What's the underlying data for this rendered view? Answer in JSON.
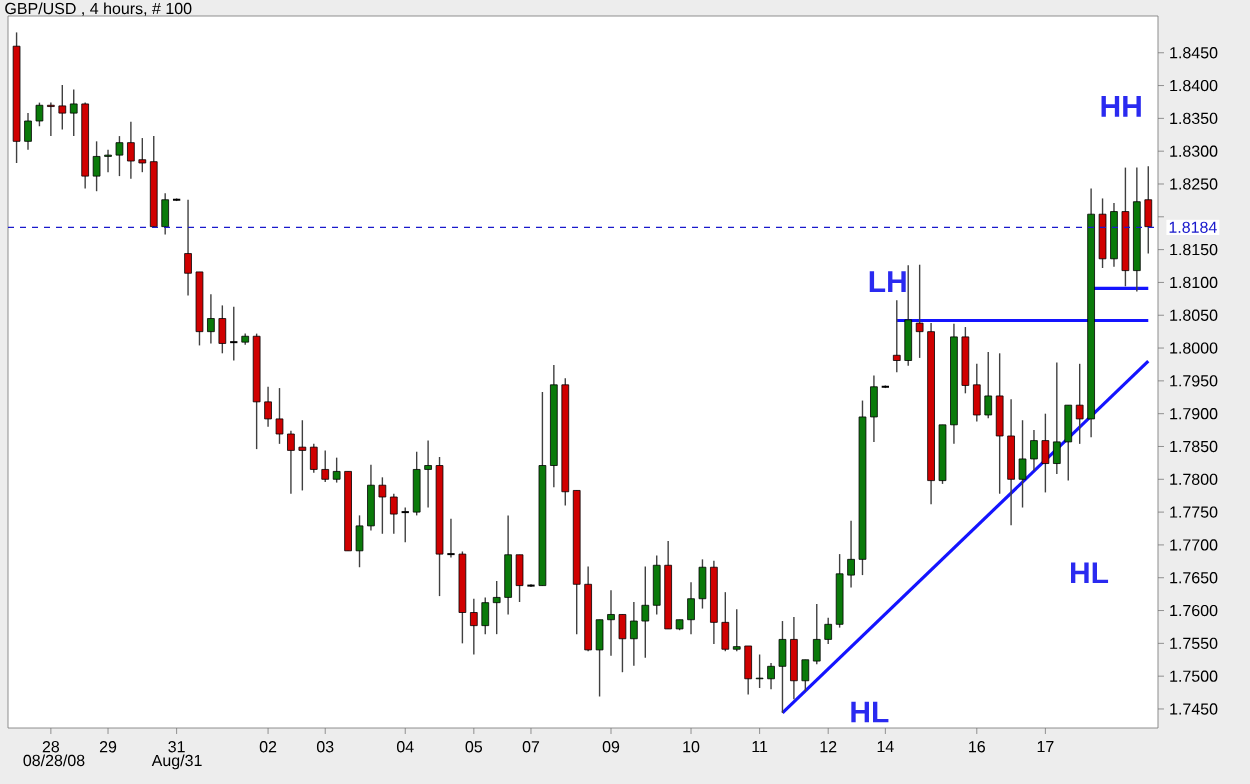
{
  "chart_data": {
    "type": "candlestick",
    "title": "GBP/USD , 4 hours, # 100",
    "categories": [
      null,
      null,
      null,
      "28",
      null,
      null,
      null,
      null,
      "29",
      null,
      null,
      null,
      null,
      null,
      "31",
      null,
      null,
      null,
      null,
      null,
      null,
      null,
      "02",
      null,
      null,
      null,
      null,
      "03",
      null,
      null,
      null,
      null,
      null,
      null,
      "04",
      null,
      null,
      null,
      null,
      null,
      "05",
      null,
      null,
      null,
      null,
      "07",
      null,
      null,
      null,
      null,
      null,
      null,
      "09",
      null,
      null,
      null,
      null,
      null,
      null,
      "10",
      null,
      null,
      null,
      null,
      null,
      "11",
      null,
      null,
      null,
      null,
      null,
      "12",
      null,
      null,
      null,
      null,
      "14",
      null,
      null,
      null,
      null,
      null,
      null,
      null,
      "16",
      null,
      null,
      null,
      null,
      null,
      "17",
      null,
      null,
      null,
      null,
      null,
      null,
      null,
      null,
      null
    ],
    "ohlc": [
      [
        1.846,
        1.8481,
        1.8282,
        1.8315
      ],
      [
        1.8315,
        1.8358,
        1.8302,
        1.8346
      ],
      [
        1.8346,
        1.8374,
        1.8338,
        1.837
      ],
      [
        1.837,
        1.8374,
        1.8323,
        1.8368
      ],
      [
        1.8369,
        1.8401,
        1.8333,
        1.8358
      ],
      [
        1.8358,
        1.8394,
        1.8323,
        1.8372
      ],
      [
        1.8372,
        1.8374,
        1.8243,
        1.8262
      ],
      [
        1.8262,
        1.8315,
        1.8239,
        1.8292
      ],
      [
        1.8292,
        1.8302,
        1.8268,
        1.8294
      ],
      [
        1.8294,
        1.8323,
        1.8262,
        1.8313
      ],
      [
        1.8313,
        1.8345,
        1.8258,
        1.8285
      ],
      [
        1.8287,
        1.832,
        1.8268,
        1.8282
      ],
      [
        1.8284,
        1.8323,
        1.8185,
        1.8185
      ],
      [
        1.8185,
        1.8236,
        1.8173,
        1.8226
      ],
      [
        1.8226,
        1.8228,
        1.8224,
        1.8226
      ],
      [
        1.8144,
        1.8226,
        1.808,
        1.8114
      ],
      [
        1.8116,
        1.8116,
        1.8004,
        1.8025
      ],
      [
        1.8025,
        1.8082,
        1.8007,
        1.8045
      ],
      [
        1.8045,
        1.8065,
        1.7992,
        1.8007
      ],
      [
        1.8009,
        1.8063,
        1.7981,
        1.8009
      ],
      [
        1.8009,
        1.8022,
        1.8005,
        1.8018
      ],
      [
        1.8018,
        1.8022,
        1.7846,
        1.7918
      ],
      [
        1.7918,
        1.7941,
        1.788,
        1.7892
      ],
      [
        1.7892,
        1.7939,
        1.7854,
        1.7869
      ],
      [
        1.7869,
        1.7874,
        1.7778,
        1.7844
      ],
      [
        1.7849,
        1.789,
        1.7783,
        1.7844
      ],
      [
        1.7849,
        1.7854,
        1.781,
        1.7815
      ],
      [
        1.7815,
        1.7844,
        1.7796,
        1.78
      ],
      [
        1.78,
        1.7833,
        1.7795,
        1.7812
      ],
      [
        1.7812,
        1.7812,
        1.7691,
        1.7691
      ],
      [
        1.7691,
        1.7745,
        1.7666,
        1.7729
      ],
      [
        1.7729,
        1.7822,
        1.7722,
        1.7791
      ],
      [
        1.7791,
        1.7803,
        1.7717,
        1.7773
      ],
      [
        1.7773,
        1.7778,
        1.7717,
        1.7747
      ],
      [
        1.775,
        1.7757,
        1.7704,
        1.775
      ],
      [
        1.775,
        1.7842,
        1.7745,
        1.7815
      ],
      [
        1.7815,
        1.7859,
        1.7757,
        1.7821
      ],
      [
        1.7821,
        1.7834,
        1.7622,
        1.7686
      ],
      [
        1.7686,
        1.774,
        1.7681,
        1.7686
      ],
      [
        1.7686,
        1.769,
        1.755,
        1.7597
      ],
      [
        1.7597,
        1.7618,
        1.7533,
        1.7577
      ],
      [
        1.7577,
        1.762,
        1.7564,
        1.7612
      ],
      [
        1.7612,
        1.7645,
        1.7564,
        1.762
      ],
      [
        1.762,
        1.7745,
        1.7594,
        1.7685
      ],
      [
        1.7685,
        1.7685,
        1.7613,
        1.7638
      ],
      [
        1.7638,
        1.764,
        1.7636,
        1.7638
      ],
      [
        1.7638,
        1.7933,
        1.7638,
        1.7821
      ],
      [
        1.7821,
        1.7974,
        1.7788,
        1.7944
      ],
      [
        1.7944,
        1.7954,
        1.776,
        1.7781
      ],
      [
        1.7783,
        1.7783,
        1.7564,
        1.764
      ],
      [
        1.764,
        1.7667,
        1.7538,
        1.754
      ],
      [
        1.754,
        1.7586,
        1.7469,
        1.7586
      ],
      [
        1.7586,
        1.7631,
        1.7531,
        1.7594
      ],
      [
        1.7594,
        1.7594,
        1.7506,
        1.7557
      ],
      [
        1.7557,
        1.7613,
        1.7516,
        1.7584
      ],
      [
        1.7584,
        1.7667,
        1.7528,
        1.7608
      ],
      [
        1.7608,
        1.7684,
        1.7594,
        1.7669
      ],
      [
        1.7669,
        1.7706,
        1.7572,
        1.7572
      ],
      [
        1.7572,
        1.7586,
        1.757,
        1.7586
      ],
      [
        1.7586,
        1.7643,
        1.7564,
        1.7618
      ],
      [
        1.7618,
        1.7678,
        1.7603,
        1.7666
      ],
      [
        1.7666,
        1.7676,
        1.7549,
        1.7582
      ],
      [
        1.7582,
        1.7628,
        1.7538,
        1.7541
      ],
      [
        1.7541,
        1.7602,
        1.7538,
        1.7545
      ],
      [
        1.7546,
        1.7546,
        1.7472,
        1.7496
      ],
      [
        1.7496,
        1.7533,
        1.7482,
        1.7497
      ],
      [
        1.7496,
        1.752,
        1.748,
        1.7515
      ],
      [
        1.7515,
        1.7584,
        1.7444,
        1.7556
      ],
      [
        1.7556,
        1.759,
        1.7465,
        1.7493
      ],
      [
        1.7493,
        1.7525,
        1.7477,
        1.7525
      ],
      [
        1.7523,
        1.761,
        1.7518,
        1.7556
      ],
      [
        1.7556,
        1.7589,
        1.7549,
        1.7579
      ],
      [
        1.7579,
        1.7686,
        1.7574,
        1.7656
      ],
      [
        1.7654,
        1.7737,
        1.7635,
        1.7678
      ],
      [
        1.7678,
        1.792,
        1.7654,
        1.7895
      ],
      [
        1.7895,
        1.7958,
        1.7857,
        1.7941
      ],
      [
        1.7941,
        1.7943,
        1.7939,
        1.7941
      ],
      [
        1.7989,
        1.8073,
        1.7963,
        1.7981
      ],
      [
        1.7981,
        1.8126,
        1.7973,
        1.8043
      ],
      [
        1.8038,
        1.8127,
        1.7985,
        1.8025
      ],
      [
        1.8025,
        1.8038,
        1.7762,
        1.7798
      ],
      [
        1.7798,
        1.7883,
        1.7793,
        1.7883
      ],
      [
        1.7883,
        1.8037,
        1.7854,
        1.8017
      ],
      [
        1.8017,
        1.8032,
        1.7931,
        1.7943
      ],
      [
        1.7944,
        1.7976,
        1.7888,
        1.7898
      ],
      [
        1.7898,
        1.7994,
        1.7893,
        1.7927
      ],
      [
        1.7927,
        1.7992,
        1.7778,
        1.7866
      ],
      [
        1.7866,
        1.7922,
        1.773,
        1.78
      ],
      [
        1.78,
        1.789,
        1.7757,
        1.7831
      ],
      [
        1.7831,
        1.7875,
        1.7813,
        1.7859
      ],
      [
        1.7859,
        1.79,
        1.778,
        1.7824
      ],
      [
        1.7824,
        1.7978,
        1.7808,
        1.7857
      ],
      [
        1.7857,
        1.7913,
        1.7798,
        1.7913
      ],
      [
        1.7913,
        1.7976,
        1.7854,
        1.7892
      ],
      [
        1.7892,
        1.8243,
        1.7864,
        1.8204
      ],
      [
        1.8204,
        1.8228,
        1.8122,
        1.8136
      ],
      [
        1.8136,
        1.8221,
        1.8124,
        1.8208
      ],
      [
        1.8208,
        1.8275,
        1.8094,
        1.8118
      ],
      [
        1.8118,
        1.8275,
        1.8086,
        1.8223
      ],
      [
        1.8226,
        1.8277,
        1.8144,
        1.8185
      ]
    ],
    "colors": [
      "#d00000",
      "#0a7a0a",
      "#0a7a0a",
      "#d00000",
      "#d00000",
      "#0a7a0a",
      "#d00000",
      "#0a7a0a",
      "#0a7a0a",
      "#0a7a0a",
      "#d00000",
      "#d00000",
      "#d00000",
      "#0a7a0a",
      "#000000",
      "#d00000",
      "#d00000",
      "#0a7a0a",
      "#d00000",
      "#000000",
      "#0a7a0a",
      "#d00000",
      "#d00000",
      "#d00000",
      "#d00000",
      "#d00000",
      "#d00000",
      "#d00000",
      "#0a7a0a",
      "#d00000",
      "#0a7a0a",
      "#0a7a0a",
      "#d00000",
      "#d00000",
      "#000000",
      "#0a7a0a",
      "#0a7a0a",
      "#d00000",
      "#000000",
      "#d00000",
      "#d00000",
      "#0a7a0a",
      "#0a7a0a",
      "#0a7a0a",
      "#d00000",
      "#000000",
      "#0a7a0a",
      "#0a7a0a",
      "#d00000",
      "#d00000",
      "#d00000",
      "#0a7a0a",
      "#0a7a0a",
      "#d00000",
      "#0a7a0a",
      "#0a7a0a",
      "#0a7a0a",
      "#d00000",
      "#0a7a0a",
      "#0a7a0a",
      "#0a7a0a",
      "#d00000",
      "#d00000",
      "#0a7a0a",
      "#d00000",
      "#0a7a0a",
      "#0a7a0a",
      "#0a7a0a",
      "#d00000",
      "#0a7a0a",
      "#0a7a0a",
      "#0a7a0a",
      "#0a7a0a",
      "#0a7a0a",
      "#0a7a0a",
      "#0a7a0a",
      "#000000",
      "#d00000",
      "#0a7a0a",
      "#d00000",
      "#d00000",
      "#0a7a0a",
      "#0a7a0a",
      "#d00000",
      "#d00000",
      "#0a7a0a",
      "#d00000",
      "#d00000",
      "#0a7a0a",
      "#0a7a0a",
      "#d00000",
      "#0a7a0a",
      "#0a7a0a",
      "#d00000",
      "#0a7a0a",
      "#d00000",
      "#0a7a0a",
      "#d00000",
      "#0a7a0a",
      "#d00000"
    ],
    "series": [
      {
        "type": "line",
        "color": "#1414ff",
        "values": [
          null,
          null,
          null,
          null,
          null,
          null,
          null,
          null,
          null,
          null,
          null,
          null,
          null,
          null,
          null,
          null,
          null,
          null,
          null,
          null,
          null,
          null,
          null,
          null,
          null,
          null,
          null,
          null,
          null,
          null,
          null,
          null,
          null,
          null,
          null,
          null,
          null,
          null,
          null,
          null,
          null,
          null,
          null,
          null,
          null,
          null,
          null,
          null,
          null,
          null,
          null,
          null,
          null,
          null,
          null,
          null,
          null,
          null,
          null,
          null,
          null,
          null,
          null,
          null,
          null,
          null,
          null,
          1.7444,
          null,
          null,
          null,
          null,
          null,
          null,
          null,
          null,
          null,
          null,
          null,
          null,
          null,
          null,
          null,
          null,
          null,
          null,
          null,
          null,
          null,
          null,
          null,
          null,
          null,
          null,
          null,
          null,
          null,
          null,
          null,
          1.798
        ]
      },
      {
        "type": "line",
        "color": "#1414ff",
        "values": [
          null,
          null,
          null,
          null,
          null,
          null,
          null,
          null,
          null,
          null,
          null,
          null,
          null,
          null,
          null,
          null,
          null,
          null,
          null,
          null,
          null,
          null,
          null,
          null,
          null,
          null,
          null,
          null,
          null,
          null,
          null,
          null,
          null,
          null,
          null,
          null,
          null,
          null,
          null,
          null,
          null,
          null,
          null,
          null,
          null,
          null,
          null,
          null,
          null,
          null,
          null,
          null,
          null,
          null,
          null,
          null,
          null,
          null,
          null,
          null,
          null,
          null,
          null,
          null,
          null,
          null,
          null,
          null,
          null,
          null,
          null,
          null,
          null,
          null,
          null,
          null,
          null,
          1.8042,
          null,
          null,
          null,
          null,
          null,
          null,
          null,
          null,
          null,
          null,
          null,
          null,
          null,
          null,
          null,
          null,
          null,
          null,
          null,
          null,
          null,
          1.8042
        ]
      },
      {
        "type": "line",
        "color": "#1414ff",
        "values": [
          null,
          null,
          null,
          null,
          null,
          null,
          null,
          null,
          null,
          null,
          null,
          null,
          null,
          null,
          null,
          null,
          null,
          null,
          null,
          null,
          null,
          null,
          null,
          null,
          null,
          null,
          null,
          null,
          null,
          null,
          null,
          null,
          null,
          null,
          null,
          null,
          null,
          null,
          null,
          null,
          null,
          null,
          null,
          null,
          null,
          null,
          null,
          null,
          null,
          null,
          null,
          null,
          null,
          null,
          null,
          null,
          null,
          null,
          null,
          null,
          null,
          null,
          null,
          null,
          null,
          null,
          null,
          null,
          null,
          null,
          null,
          null,
          null,
          null,
          null,
          null,
          null,
          null,
          null,
          null,
          null,
          null,
          null,
          null,
          null,
          null,
          null,
          null,
          null,
          null,
          null,
          null,
          null,
          null,
          1.8091,
          null,
          null,
          null,
          null,
          1.8091
        ]
      }
    ],
    "ylim": [
      1.7421,
      1.8506
    ],
    "yticks": [
      {
        "value": 1.745,
        "label": "1.7450"
      },
      {
        "value": 1.75,
        "label": "1.7500"
      },
      {
        "value": 1.755,
        "label": "1.7550"
      },
      {
        "value": 1.76,
        "label": "1.7600"
      },
      {
        "value": 1.765,
        "label": "1.7650"
      },
      {
        "value": 1.77,
        "label": "1.7700"
      },
      {
        "value": 1.775,
        "label": "1.7750"
      },
      {
        "value": 1.78,
        "label": "1.7800"
      },
      {
        "value": 1.785,
        "label": "1.7850"
      },
      {
        "value": 1.79,
        "label": "1.7900"
      },
      {
        "value": 1.795,
        "label": "1.7950"
      },
      {
        "value": 1.8,
        "label": "1.8000"
      },
      {
        "value": 1.805,
        "label": "1.8050"
      },
      {
        "value": 1.81,
        "label": "1.8100"
      },
      {
        "value": 1.815,
        "label": "1.8150"
      },
      {
        "value": 1.82,
        "label": null
      },
      {
        "value": 1.825,
        "label": "1.8250"
      },
      {
        "value": 1.83,
        "label": "1.8300"
      },
      {
        "value": 1.835,
        "label": "1.8350"
      },
      {
        "value": 1.84,
        "label": "1.8400"
      },
      {
        "value": 1.845,
        "label": "1.8450"
      }
    ],
    "ref_lines": [
      {
        "axis": "y",
        "value": 1.8184,
        "label": "1.8184",
        "color": "#1a1acc",
        "line_style": "dashed"
      }
    ],
    "annotations": [
      "HH",
      "LH",
      "HL",
      "HL",
      "08/28/08",
      "Aug/31"
    ]
  }
}
